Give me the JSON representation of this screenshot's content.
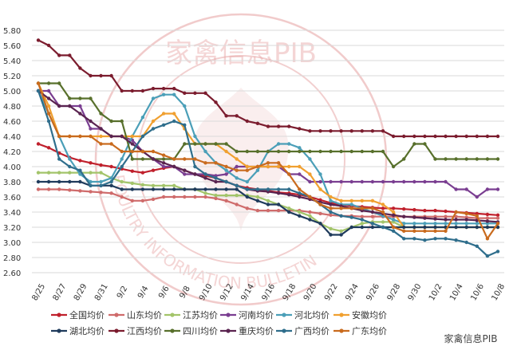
{
  "watermark": {
    "top_text": "家禽信息PIB",
    "ring_text": "POULTRY INFORMATION BULLETIN",
    "corner_text": "家禽信息PIB",
    "color": "#e6a0a0"
  },
  "chart_data": {
    "type": "line",
    "title": "",
    "xlabel": "",
    "ylabel": "",
    "ylim": [
      2.6,
      5.9
    ],
    "yticks": [
      "2.60",
      "2.80",
      "3.00",
      "3.20",
      "3.40",
      "3.60",
      "3.80",
      "4.00",
      "4.20",
      "4.40",
      "4.60",
      "4.80",
      "5.00",
      "5.20",
      "5.40",
      "5.60",
      "5.80"
    ],
    "x": [
      "8/25",
      "8/26",
      "8/27",
      "8/28",
      "8/29",
      "8/30",
      "8/31",
      "9/1",
      "9/2",
      "9/3",
      "9/4",
      "9/5",
      "9/6",
      "9/7",
      "9/8",
      "9/9",
      "9/10",
      "9/11",
      "9/12",
      "9/13",
      "9/14",
      "9/15",
      "9/16",
      "9/17",
      "9/18",
      "9/19",
      "9/20",
      "9/21",
      "9/22",
      "9/23",
      "9/24",
      "9/25",
      "9/26",
      "9/27",
      "9/28",
      "9/29",
      "9/30",
      "10/1",
      "10/2",
      "10/3",
      "10/4",
      "10/5",
      "10/6",
      "10/7",
      "10/8"
    ],
    "xticks": [
      "8/25",
      "8/27",
      "8/29",
      "8/31",
      "9/2",
      "9/4",
      "9/6",
      "9/8",
      "9/10",
      "9/12",
      "9/14",
      "9/16",
      "9/18",
      "9/20",
      "9/22",
      "9/24",
      "9/26",
      "9/28",
      "9/30",
      "10/2",
      "10/4",
      "10/6",
      "10/8"
    ],
    "grid": true,
    "legend_position": "bottom",
    "series": [
      {
        "name": "全国均价",
        "color": "#c0202c",
        "marker": "circle",
        "values": [
          4.3,
          4.25,
          4.18,
          4.12,
          4.08,
          4.05,
          4.02,
          4.0,
          3.97,
          3.94,
          3.92,
          3.95,
          3.98,
          4.0,
          3.95,
          3.9,
          3.88,
          3.85,
          3.8,
          3.75,
          3.72,
          3.7,
          3.68,
          3.66,
          3.65,
          3.63,
          3.6,
          3.56,
          3.52,
          3.5,
          3.48,
          3.47,
          3.46,
          3.45,
          3.45,
          3.44,
          3.43,
          3.42,
          3.42,
          3.41,
          3.4,
          3.39,
          3.38,
          3.37,
          3.36
        ]
      },
      {
        "name": "山东均价",
        "color": "#cf6b6b",
        "marker": "circle",
        "values": [
          3.7,
          3.7,
          3.7,
          3.69,
          3.68,
          3.67,
          3.66,
          3.65,
          3.6,
          3.55,
          3.55,
          3.57,
          3.6,
          3.6,
          3.6,
          3.6,
          3.6,
          3.58,
          3.55,
          3.5,
          3.45,
          3.42,
          3.42,
          3.42,
          3.42,
          3.42,
          3.4,
          3.38,
          3.36,
          3.35,
          3.35,
          3.34,
          3.34,
          3.34,
          3.34,
          3.34,
          3.34,
          3.34,
          3.34,
          3.34,
          3.34,
          3.33,
          3.32,
          3.32,
          3.32
        ]
      },
      {
        "name": "江苏均价",
        "color": "#a3c46a",
        "marker": "circle",
        "values": [
          3.92,
          3.92,
          3.92,
          3.92,
          3.92,
          3.92,
          3.92,
          3.85,
          3.8,
          3.78,
          3.76,
          3.75,
          3.75,
          3.75,
          3.7,
          3.7,
          3.65,
          3.62,
          3.62,
          3.62,
          3.62,
          3.6,
          3.55,
          3.5,
          3.45,
          3.4,
          3.35,
          3.25,
          3.18,
          3.15,
          3.2,
          3.25,
          3.27,
          3.27,
          3.27,
          3.2,
          3.2,
          3.2,
          3.2,
          3.2,
          3.2,
          3.2,
          3.2,
          3.2,
          3.2
        ]
      },
      {
        "name": "河南均价",
        "color": "#7a3e91",
        "marker": "circle",
        "values": [
          5.0,
          5.0,
          4.8,
          4.8,
          4.8,
          4.5,
          4.5,
          4.4,
          4.4,
          4.35,
          4.2,
          4.1,
          4.0,
          4.0,
          3.9,
          3.9,
          3.9,
          3.88,
          3.9,
          4.0,
          4.0,
          4.0,
          4.0,
          4.0,
          3.9,
          3.9,
          3.8,
          3.8,
          3.8,
          3.8,
          3.8,
          3.8,
          3.8,
          3.8,
          3.8,
          3.8,
          3.8,
          3.8,
          3.8,
          3.8,
          3.7,
          3.7,
          3.6,
          3.7,
          3.7
        ]
      },
      {
        "name": "河北均价",
        "color": "#4b9fb8",
        "marker": "circle",
        "values": [
          5.0,
          4.7,
          4.4,
          4.1,
          3.9,
          3.8,
          3.8,
          3.85,
          4.1,
          4.4,
          4.65,
          4.9,
          4.95,
          4.95,
          4.8,
          4.4,
          4.2,
          4.05,
          3.95,
          3.85,
          3.8,
          3.95,
          4.2,
          4.3,
          4.3,
          4.25,
          4.1,
          3.9,
          3.55,
          3.5,
          3.5,
          3.45,
          3.4,
          3.35,
          3.3,
          3.25,
          3.25,
          3.25,
          3.25,
          3.25,
          3.25,
          3.25,
          3.25,
          3.25,
          3.25
        ]
      },
      {
        "name": "安徽均价",
        "color": "#f0a030",
        "marker": "circle",
        "values": [
          5.1,
          4.8,
          4.4,
          4.4,
          4.4,
          4.4,
          4.4,
          4.4,
          4.4,
          4.4,
          4.4,
          4.6,
          4.7,
          4.7,
          4.5,
          4.3,
          4.3,
          4.3,
          4.2,
          4.1,
          4.0,
          4.0,
          4.0,
          4.0,
          4.0,
          4.0,
          3.9,
          3.7,
          3.6,
          3.55,
          3.55,
          3.55,
          3.55,
          3.5,
          3.4,
          3.2,
          3.2,
          3.2,
          3.2,
          3.2,
          3.2,
          3.2,
          3.2,
          3.2,
          3.2
        ]
      },
      {
        "name": "湖北均价",
        "color": "#1f3b5c",
        "marker": "circle",
        "values": [
          3.8,
          3.8,
          3.8,
          3.8,
          3.8,
          3.75,
          3.75,
          3.75,
          3.7,
          3.7,
          3.7,
          3.7,
          3.7,
          3.7,
          3.7,
          3.7,
          3.7,
          3.7,
          3.7,
          3.7,
          3.6,
          3.55,
          3.5,
          3.5,
          3.4,
          3.35,
          3.3,
          3.25,
          3.1,
          3.1,
          3.2,
          3.2,
          3.2,
          3.2,
          3.2,
          3.2,
          3.2,
          3.2,
          3.2,
          3.2,
          3.2,
          3.2,
          3.2,
          3.2,
          3.2
        ]
      },
      {
        "name": "江西均价",
        "color": "#7b1c2e",
        "marker": "circle",
        "values": [
          5.67,
          5.6,
          5.47,
          5.47,
          5.3,
          5.2,
          5.2,
          5.2,
          5.0,
          5.0,
          5.0,
          5.03,
          5.03,
          5.03,
          4.97,
          4.97,
          4.97,
          4.85,
          4.67,
          4.67,
          4.6,
          4.57,
          4.53,
          4.53,
          4.53,
          4.5,
          4.47,
          4.47,
          4.47,
          4.47,
          4.47,
          4.47,
          4.47,
          4.47,
          4.4,
          4.4,
          4.4,
          4.4,
          4.4,
          4.4,
          4.4,
          4.4,
          4.4,
          4.4,
          4.4
        ]
      },
      {
        "name": "四川均价",
        "color": "#58702c",
        "marker": "circle",
        "values": [
          5.1,
          5.1,
          5.1,
          4.9,
          4.9,
          4.9,
          4.7,
          4.6,
          4.6,
          4.1,
          4.1,
          4.1,
          4.1,
          4.1,
          4.3,
          4.3,
          4.3,
          4.3,
          4.3,
          4.2,
          4.2,
          4.2,
          4.2,
          4.2,
          4.2,
          4.2,
          4.2,
          4.2,
          4.2,
          4.2,
          4.2,
          4.2,
          4.2,
          4.2,
          4.0,
          4.1,
          4.3,
          4.3,
          4.1,
          4.1,
          4.1,
          4.1,
          4.1,
          4.1,
          4.1
        ]
      },
      {
        "name": "重庆均价",
        "color": "#5a2450",
        "marker": "circle",
        "values": [
          5.0,
          4.9,
          4.8,
          4.8,
          4.7,
          4.6,
          4.5,
          4.4,
          4.4,
          4.3,
          4.2,
          4.1,
          4.05,
          4.0,
          3.95,
          3.9,
          3.85,
          3.8,
          3.8,
          3.75,
          3.7,
          3.68,
          3.67,
          3.65,
          3.63,
          3.6,
          3.57,
          3.53,
          3.5,
          3.48,
          3.45,
          3.42,
          3.4,
          3.38,
          3.36,
          3.34,
          3.33,
          3.32,
          3.31,
          3.3,
          3.3,
          3.3,
          3.29,
          3.28,
          3.27
        ]
      },
      {
        "name": "广西均价",
        "color": "#2f6e8c",
        "marker": "circle",
        "values": [
          5.0,
          4.6,
          4.1,
          4.0,
          3.95,
          3.75,
          3.75,
          3.8,
          4.0,
          4.2,
          4.4,
          4.5,
          4.55,
          4.6,
          4.55,
          4.0,
          3.9,
          3.85,
          3.8,
          3.75,
          3.7,
          3.7,
          3.7,
          3.7,
          3.7,
          3.65,
          3.6,
          3.5,
          3.4,
          3.35,
          3.33,
          3.3,
          3.25,
          3.2,
          3.15,
          3.05,
          3.05,
          3.03,
          3.05,
          3.05,
          3.03,
          3.0,
          2.95,
          2.82,
          2.88
        ]
      },
      {
        "name": "广东均价",
        "color": "#c96b1e",
        "marker": "circle",
        "values": [
          5.1,
          4.7,
          4.4,
          4.4,
          4.4,
          4.4,
          4.3,
          4.3,
          4.2,
          4.2,
          4.2,
          4.2,
          4.15,
          4.1,
          4.1,
          4.1,
          4.05,
          4.05,
          4.0,
          3.95,
          3.95,
          4.0,
          4.05,
          4.05,
          3.9,
          3.7,
          3.6,
          3.5,
          3.45,
          3.45,
          3.45,
          3.45,
          3.45,
          3.4,
          3.2,
          3.15,
          3.15,
          3.15,
          3.15,
          3.15,
          3.4,
          3.38,
          3.35,
          3.05,
          3.25
        ]
      }
    ]
  }
}
